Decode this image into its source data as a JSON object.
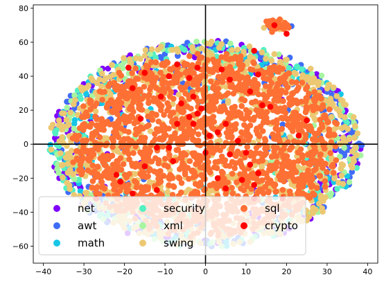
{
  "chart_data": {
    "type": "scatter",
    "title": "",
    "xlabel": "",
    "ylabel": "",
    "xlim": [
      -42.5,
      42.5
    ],
    "ylim": [
      -70,
      82
    ],
    "xticks": [
      -40,
      -30,
      -20,
      -10,
      0,
      10,
      20,
      30,
      40
    ],
    "yticks": [
      -60,
      -40,
      -20,
      0,
      20,
      40,
      60,
      80
    ],
    "axis_lines": {
      "x": 0,
      "y": 0,
      "color": "#000000"
    },
    "grid": false,
    "legend": {
      "position": "lower-left",
      "columns": 3
    },
    "series": [
      {
        "name": "net",
        "color": "#8000ff",
        "count": 260
      },
      {
        "name": "awt",
        "color": "#3f6cf6",
        "count": 320
      },
      {
        "name": "math",
        "color": "#16c6e6",
        "count": 120
      },
      {
        "name": "security",
        "color": "#55f0c2",
        "count": 180
      },
      {
        "name": "xml",
        "color": "#a7f5a0",
        "count": 150
      },
      {
        "name": "swing",
        "color": "#ecc872",
        "count": 900
      },
      {
        "name": "sql",
        "color": "#ff7034",
        "count": 1700
      },
      {
        "name": "crypto",
        "color": "#ff0000",
        "count": 0,
        "points": [
          [
            -7,
            47
          ],
          [
            -2,
            45
          ],
          [
            4,
            44
          ],
          [
            12,
            55
          ],
          [
            -15,
            42
          ],
          [
            6,
            38
          ],
          [
            -9,
            40
          ],
          [
            -4,
            39
          ],
          [
            13,
            41
          ],
          [
            -19,
            45
          ],
          [
            -18,
            33
          ],
          [
            -16,
            15
          ],
          [
            -11,
            28
          ],
          [
            -3,
            28
          ],
          [
            -6,
            24
          ],
          [
            11,
            31
          ],
          [
            -1,
            21
          ],
          [
            -2,
            18
          ],
          [
            -4,
            16
          ],
          [
            14,
            23
          ],
          [
            16,
            22
          ],
          [
            23,
            5
          ],
          [
            25,
            14
          ],
          [
            -7,
            12
          ],
          [
            -3,
            12
          ],
          [
            1,
            5
          ],
          [
            5,
            12
          ],
          [
            3,
            7
          ],
          [
            8,
            2
          ],
          [
            -9,
            -2
          ],
          [
            -22,
            -18
          ],
          [
            -15,
            -13
          ],
          [
            -8,
            -10
          ],
          [
            0,
            -5
          ],
          [
            11,
            -12
          ],
          [
            13,
            -17
          ],
          [
            6,
            -6
          ],
          [
            9,
            -21
          ],
          [
            12,
            -24
          ],
          [
            -21,
            -22
          ],
          [
            -18,
            -29
          ],
          [
            -12,
            -27
          ],
          [
            3,
            -20
          ],
          [
            5,
            -26
          ],
          [
            12,
            -32
          ],
          [
            19,
            -32
          ],
          [
            20,
            65
          ],
          [
            17,
            70
          ],
          [
            -27,
            -32
          ],
          [
            10,
            -5
          ],
          [
            -12,
            -2
          ]
        ]
      }
    ],
    "clusters": [
      {
        "center": [
          17.5,
          70
        ],
        "spread": [
          2.2,
          2.5
        ],
        "members": [
          "sql",
          "swing",
          "awt"
        ]
      }
    ]
  }
}
